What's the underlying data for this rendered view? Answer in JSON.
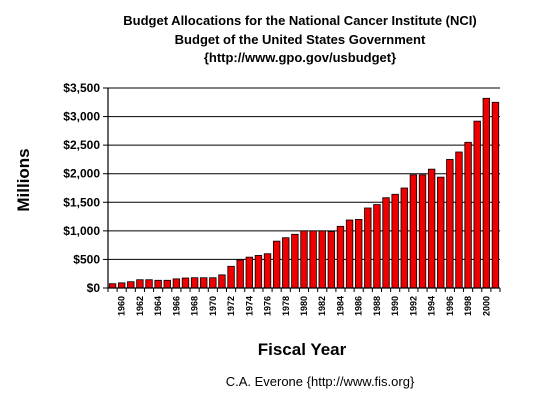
{
  "header": {
    "title_line1": "Budget Allocations for the National Cancer Institute (NCI)",
    "title_line2": "Budget of the United States Government",
    "title_line3": "{http://www.gpo.gov/usbudget}"
  },
  "footer": {
    "credit": "C.A. Everone {http://www.fis.org}"
  },
  "chart_data": {
    "type": "bar",
    "title": "Budget Allocations for the National Cancer Institute (NCI)",
    "subtitle": "Budget of the United States Government {http://www.gpo.gov/usbudget}",
    "xlabel": "Fiscal Year",
    "ylabel": "Millions",
    "ylim": [
      0,
      3500
    ],
    "yticks": [
      0,
      500,
      1000,
      1500,
      2000,
      2500,
      3000,
      3500
    ],
    "ytick_labels": [
      "$0",
      "$500",
      "$1,000",
      "$1,500",
      "$2,000",
      "$2,500",
      "$3,000",
      "$3,500"
    ],
    "xtick_labels": [
      "1960",
      "1962",
      "1964",
      "1966",
      "1968",
      "1970",
      "1972",
      "1974",
      "1976",
      "1978",
      "1980",
      "1982",
      "1984",
      "1986",
      "1988",
      "1990",
      "1992",
      "1994",
      "1996",
      "1998",
      "2000"
    ],
    "categories": [
      1959,
      1960,
      1961,
      1962,
      1963,
      1964,
      1965,
      1966,
      1967,
      1968,
      1969,
      1970,
      1971,
      1972,
      1973,
      1974,
      1975,
      1976,
      1977,
      1978,
      1979,
      1980,
      1981,
      1982,
      1983,
      1984,
      1985,
      1986,
      1987,
      1988,
      1989,
      1990,
      1991,
      1992,
      1993,
      1994,
      1995,
      1996,
      1997,
      1998,
      1999,
      2000,
      2001
    ],
    "values": [
      75,
      90,
      110,
      145,
      145,
      135,
      135,
      160,
      175,
      180,
      180,
      180,
      230,
      380,
      490,
      540,
      570,
      600,
      820,
      880,
      940,
      1000,
      1000,
      1000,
      990,
      1080,
      1190,
      1200,
      1400,
      1460,
      1580,
      1640,
      1750,
      1980,
      1980,
      2080,
      1940,
      2250,
      2380,
      2550,
      2920,
      3320,
      3250
    ],
    "bar_color": "#ee0000",
    "grid": "horizontal",
    "legend": "none"
  }
}
